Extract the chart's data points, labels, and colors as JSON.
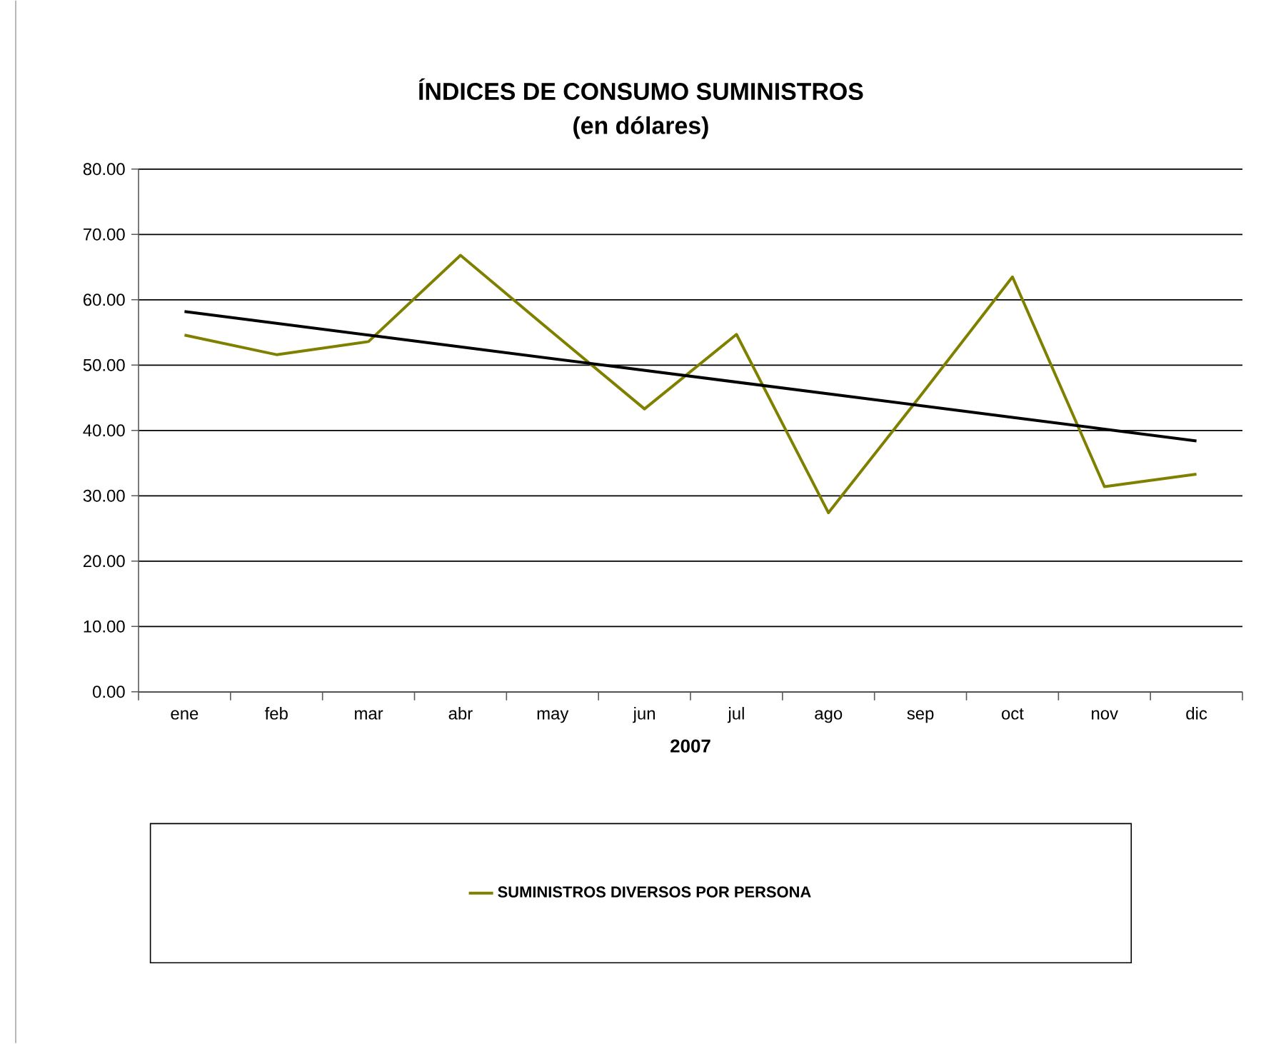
{
  "chart_data": {
    "type": "line",
    "title": "ÍNDICES DE CONSUMO SUMINISTROS",
    "subtitle": "(en dólares)",
    "xlabel": "2007",
    "categories": [
      "ene",
      "feb",
      "mar",
      "abr",
      "may",
      "jun",
      "jul",
      "ago",
      "sep",
      "oct",
      "nov",
      "dic"
    ],
    "series": [
      {
        "name": "SUMINISTROS DIVERSOS POR PERSONA",
        "color": "#808000",
        "values": [
          54.6,
          51.6,
          53.6,
          66.8,
          55.0,
          43.3,
          54.7,
          27.4,
          45.3,
          63.5,
          31.4,
          33.3
        ]
      },
      {
        "color": "#000000",
        "values": [
          58.2,
          56.4,
          54.6,
          52.8,
          51.0,
          49.2,
          47.4,
          45.6,
          43.8,
          42.0,
          40.2,
          38.4
        ]
      }
    ],
    "ylim": [
      0,
      80
    ],
    "yticks": [
      {
        "value": 0,
        "label": "0.00"
      },
      {
        "value": 10,
        "label": "10.00"
      },
      {
        "value": 20,
        "label": "20.00"
      },
      {
        "value": 30,
        "label": "30.00"
      },
      {
        "value": 40,
        "label": "40.00"
      },
      {
        "value": 50,
        "label": "50.00"
      },
      {
        "value": 60,
        "label": "60.00"
      },
      {
        "value": 70,
        "label": "70.00"
      },
      {
        "value": 80,
        "label": "80.00"
      }
    ],
    "grid": "y",
    "legend": "bottom",
    "marker": "none",
    "line_style": "solid"
  }
}
